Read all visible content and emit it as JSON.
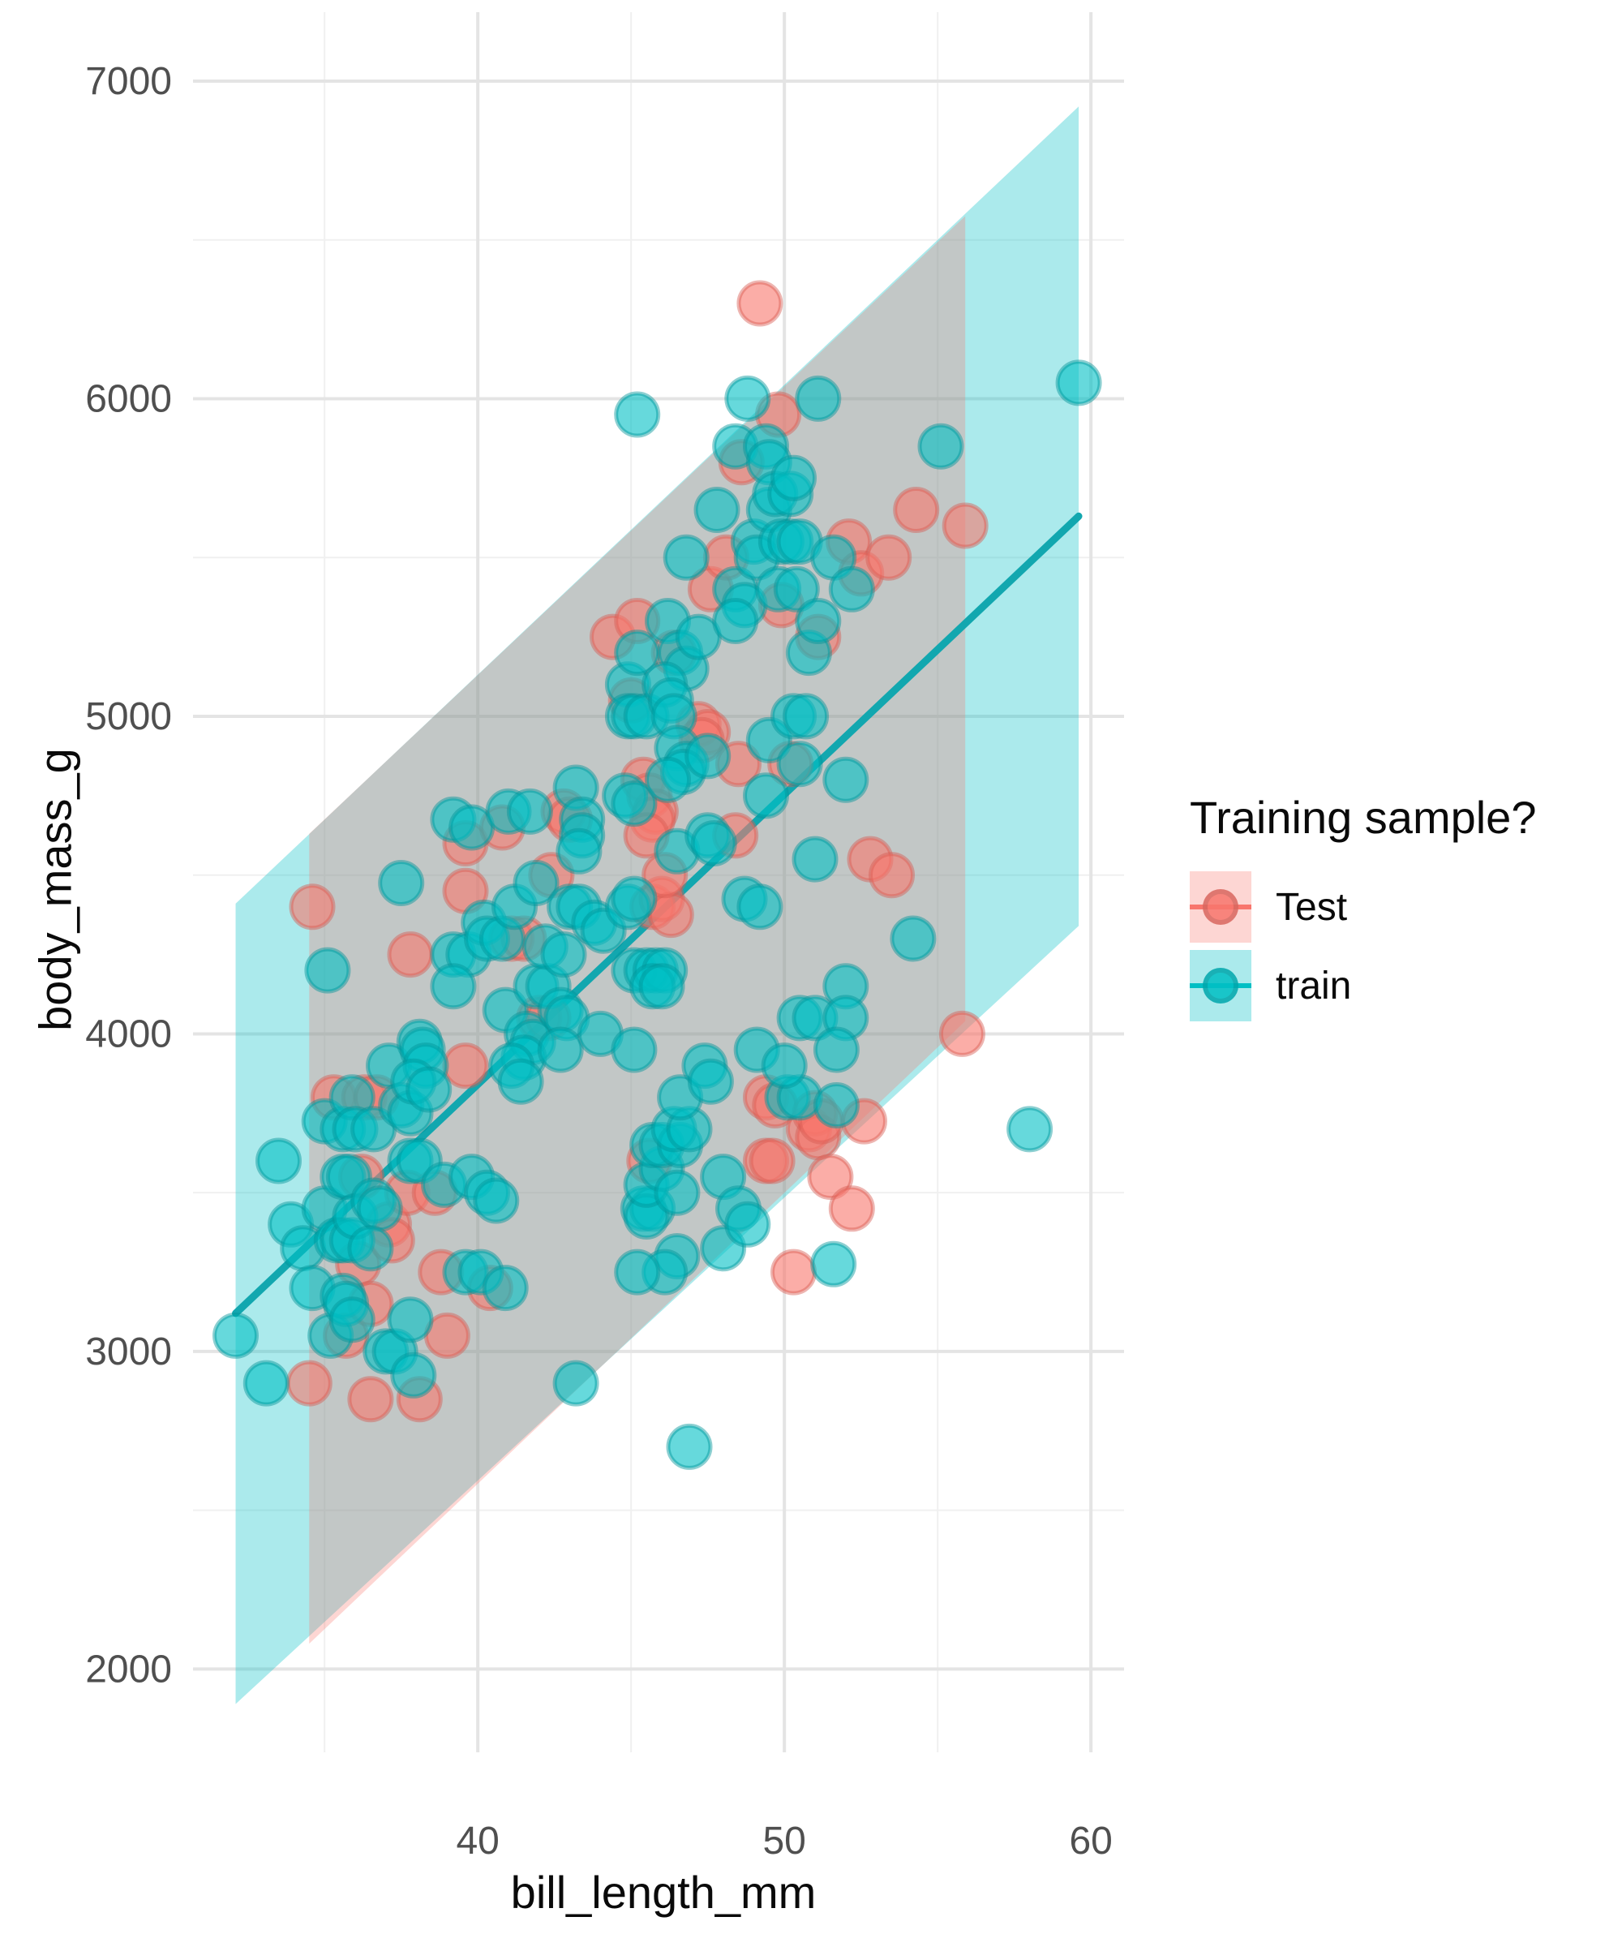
{
  "figure": {
    "xlabel": "bill_length_mm",
    "ylabel": "body_mass_g"
  },
  "legend": {
    "title": "Training sample?",
    "items": [
      {
        "label": "Test",
        "color": "#F8766D",
        "ribbon_rgba": "rgba(248,118,109,0.30)"
      },
      {
        "label": "train",
        "color": "#00BFC4",
        "ribbon_rgba": "rgba(0,191,196,0.33)"
      }
    ]
  },
  "chart_data": {
    "type": "scatter",
    "title": "",
    "xlabel": "bill_length_mm",
    "ylabel": "body_mass_g",
    "xlim": [
      30.71,
      61.08
    ],
    "ylim": [
      1738,
      7217
    ],
    "x_major_ticks": [
      40,
      50,
      60
    ],
    "x_minor_ticks": [
      35,
      45,
      55
    ],
    "y_major_ticks": [
      2000,
      3000,
      4000,
      5000,
      6000,
      7000
    ],
    "y_minor_ticks": [
      2500,
      3500,
      4500,
      5500,
      6500
    ],
    "grid": {
      "major_color": "#e4e4e4",
      "minor_color": "#f0f0f0",
      "major_width": 4,
      "minor_width": 2
    },
    "colors": {
      "Test": "#F8766D",
      "train": "#00BFC4",
      "Test_dark": "#d65b52",
      "train_dark": "#00949a",
      "line": "#12a7af"
    },
    "point_style": {
      "radius": 26,
      "fill_opacity": 0.6,
      "stroke_width": 5,
      "stroke_opacity": 0.45
    },
    "smooth": {
      "line": {
        "series": "train",
        "x": [
          32.1,
          59.6
        ],
        "y": [
          3120,
          5630
        ],
        "width": 9
      },
      "ribbons": [
        {
          "series": "train",
          "fill": "rgba(0,191,196,0.33)",
          "polygon": [
            [
              32.1,
              4410
            ],
            [
              59.6,
              6920
            ],
            [
              59.6,
              4340
            ],
            [
              32.1,
              1890
            ]
          ]
        },
        {
          "series": "Test",
          "fill": "rgba(248,118,109,0.30)",
          "polygon": [
            [
              34.5,
              4630
            ],
            [
              55.9,
              6575
            ],
            [
              55.9,
              4040
            ],
            [
              34.5,
              2080
            ]
          ]
        }
      ]
    },
    "series": [
      {
        "name": "Test",
        "points": [
          [
            34.5,
            2900
          ],
          [
            34.6,
            4400
          ],
          [
            35.3,
            3800
          ],
          [
            35.7,
            3050
          ],
          [
            36.1,
            3275
          ],
          [
            36.2,
            3550
          ],
          [
            36.3,
            3800
          ],
          [
            36.5,
            3150
          ],
          [
            36.5,
            2850
          ],
          [
            36.7,
            3800
          ],
          [
            37.1,
            3400
          ],
          [
            37.2,
            3350
          ],
          [
            37.7,
            3500
          ],
          [
            37.8,
            4250
          ],
          [
            38.1,
            2850
          ],
          [
            38.6,
            3500
          ],
          [
            38.8,
            3250
          ],
          [
            39.0,
            3050
          ],
          [
            39.6,
            4600
          ],
          [
            39.6,
            4450
          ],
          [
            39.6,
            3900
          ],
          [
            40.4,
            3200
          ],
          [
            40.8,
            4650
          ],
          [
            41.1,
            4300
          ],
          [
            41.5,
            4300
          ],
          [
            42.0,
            4050
          ],
          [
            42.3,
            4050
          ],
          [
            42.4,
            4500
          ],
          [
            42.8,
            4700
          ],
          [
            43.0,
            4675
          ],
          [
            44.4,
            5250
          ],
          [
            45.0,
            5050
          ],
          [
            45.2,
            5300
          ],
          [
            45.4,
            4800
          ],
          [
            45.6,
            4750
          ],
          [
            45.8,
            4700
          ],
          [
            45.7,
            4675
          ],
          [
            45.5,
            4625
          ],
          [
            45.6,
            3600
          ],
          [
            45.7,
            4400
          ],
          [
            46.0,
            4425
          ],
          [
            46.3,
            4375
          ],
          [
            46.1,
            4500
          ],
          [
            46.4,
            5200
          ],
          [
            47.2,
            4975
          ],
          [
            47.5,
            4950
          ],
          [
            47.3,
            4925
          ],
          [
            47.6,
            5400
          ],
          [
            48.1,
            5500
          ],
          [
            48.4,
            4625
          ],
          [
            48.5,
            4850
          ],
          [
            48.6,
            5800
          ],
          [
            49.2,
            6300
          ],
          [
            49.4,
            3800
          ],
          [
            49.7,
            3775
          ],
          [
            49.4,
            3600
          ],
          [
            49.6,
            3600
          ],
          [
            49.8,
            5950
          ],
          [
            49.9,
            5350
          ],
          [
            50.2,
            4850
          ],
          [
            50.3,
            3250
          ],
          [
            50.8,
            3700
          ],
          [
            51.0,
            3750
          ],
          [
            51.1,
            3675
          ],
          [
            51.2,
            3725
          ],
          [
            51.1,
            5250
          ],
          [
            51.5,
            3550
          ],
          [
            52.1,
            5550
          ],
          [
            52.2,
            3450
          ],
          [
            52.5,
            5450
          ],
          [
            52.6,
            3725
          ],
          [
            52.8,
            4550
          ],
          [
            53.4,
            5500
          ],
          [
            53.5,
            4500
          ],
          [
            54.3,
            5650
          ],
          [
            55.8,
            4000
          ],
          [
            55.9,
            5600
          ]
        ]
      },
      {
        "name": "train",
        "points": [
          [
            32.1,
            3050
          ],
          [
            33.1,
            2900
          ],
          [
            33.5,
            3600
          ],
          [
            33.9,
            3400
          ],
          [
            34.3,
            3325
          ],
          [
            34.6,
            3200
          ],
          [
            35.0,
            3450
          ],
          [
            35.0,
            3725
          ],
          [
            35.1,
            4200
          ],
          [
            35.2,
            3050
          ],
          [
            35.4,
            3350
          ],
          [
            35.6,
            3350
          ],
          [
            35.9,
            3350
          ],
          [
            35.6,
            3550
          ],
          [
            35.8,
            3550
          ],
          [
            35.6,
            3700
          ],
          [
            35.6,
            3175
          ],
          [
            35.7,
            3150
          ],
          [
            35.9,
            3100
          ],
          [
            35.9,
            3800
          ],
          [
            36.0,
            3425
          ],
          [
            36.0,
            3700
          ],
          [
            36.6,
            3700
          ],
          [
            36.6,
            3475
          ],
          [
            36.8,
            3450
          ],
          [
            36.5,
            3325
          ],
          [
            37.0,
            3000
          ],
          [
            37.3,
            3000
          ],
          [
            37.1,
            3900
          ],
          [
            37.5,
            3775
          ],
          [
            37.8,
            3750
          ],
          [
            37.5,
            4475
          ],
          [
            37.8,
            3100
          ],
          [
            37.9,
            2925
          ],
          [
            37.8,
            3600
          ],
          [
            38.1,
            3600
          ],
          [
            38.1,
            3975
          ],
          [
            38.2,
            3950
          ],
          [
            38.3,
            3900
          ],
          [
            37.9,
            3850
          ],
          [
            38.4,
            3825
          ],
          [
            38.9,
            3525
          ],
          [
            39.2,
            4675
          ],
          [
            39.8,
            4650
          ],
          [
            39.2,
            4250
          ],
          [
            39.7,
            4250
          ],
          [
            39.2,
            4150
          ],
          [
            39.8,
            3550
          ],
          [
            39.6,
            3250
          ],
          [
            40.1,
            3250
          ],
          [
            40.9,
            3200
          ],
          [
            40.2,
            4350
          ],
          [
            40.3,
            4300
          ],
          [
            40.8,
            4300
          ],
          [
            40.9,
            4075
          ],
          [
            40.3,
            3500
          ],
          [
            40.6,
            3475
          ],
          [
            41.0,
            4700
          ],
          [
            41.7,
            4700
          ],
          [
            41.2,
            4400
          ],
          [
            41.9,
            4475
          ],
          [
            41.9,
            4150
          ],
          [
            42.3,
            4150
          ],
          [
            41.6,
            4000
          ],
          [
            41.8,
            3975
          ],
          [
            41.5,
            3925
          ],
          [
            41.1,
            3900
          ],
          [
            41.4,
            3850
          ],
          [
            42.2,
            4275
          ],
          [
            42.8,
            4250
          ],
          [
            42.7,
            4075
          ],
          [
            42.9,
            4050
          ],
          [
            42.7,
            3950
          ],
          [
            43.2,
            4775
          ],
          [
            43.4,
            4675
          ],
          [
            43.4,
            4625
          ],
          [
            43.3,
            4575
          ],
          [
            43.0,
            4400
          ],
          [
            43.3,
            4400
          ],
          [
            43.8,
            4350
          ],
          [
            44.1,
            4325
          ],
          [
            44.0,
            4000
          ],
          [
            43.2,
            2900
          ],
          [
            44.8,
            4750
          ],
          [
            45.1,
            4725
          ],
          [
            44.9,
            5100
          ],
          [
            44.9,
            5000
          ],
          [
            45.1,
            5000
          ],
          [
            45.5,
            5000
          ],
          [
            44.9,
            4400
          ],
          [
            45.1,
            4425
          ],
          [
            45.2,
            5950
          ],
          [
            45.2,
            5200
          ],
          [
            45.1,
            4200
          ],
          [
            45.5,
            4200
          ],
          [
            45.8,
            4200
          ],
          [
            46.1,
            4200
          ],
          [
            45.7,
            4150
          ],
          [
            46.0,
            4150
          ],
          [
            45.1,
            3950
          ],
          [
            45.4,
            3450
          ],
          [
            45.7,
            3450
          ],
          [
            45.5,
            3425
          ],
          [
            45.5,
            3525
          ],
          [
            46.0,
            3575
          ],
          [
            45.7,
            3650
          ],
          [
            46.0,
            3650
          ],
          [
            46.6,
            3650
          ],
          [
            46.4,
            3700
          ],
          [
            46.9,
            3700
          ],
          [
            46.5,
            3500
          ],
          [
            46.2,
            5300
          ],
          [
            46.6,
            5200
          ],
          [
            46.8,
            5150
          ],
          [
            46.1,
            5100
          ],
          [
            46.3,
            5050
          ],
          [
            46.4,
            5000
          ],
          [
            46.5,
            4900
          ],
          [
            46.8,
            4850
          ],
          [
            46.7,
            4825
          ],
          [
            46.2,
            4800
          ],
          [
            46.5,
            4575
          ],
          [
            46.6,
            3800
          ],
          [
            46.5,
            3300
          ],
          [
            46.1,
            3250
          ],
          [
            45.2,
            3250
          ],
          [
            46.9,
            2700
          ],
          [
            47.2,
            5250
          ],
          [
            47.5,
            4875
          ],
          [
            47.5,
            4625
          ],
          [
            47.7,
            4600
          ],
          [
            47.4,
            3900
          ],
          [
            47.6,
            3850
          ],
          [
            48.0,
            3550
          ],
          [
            48.0,
            3325
          ],
          [
            48.5,
            3450
          ],
          [
            48.8,
            3400
          ],
          [
            47.8,
            5650
          ],
          [
            48.4,
            5850
          ],
          [
            48.4,
            5400
          ],
          [
            48.7,
            5350
          ],
          [
            48.4,
            5300
          ],
          [
            48.8,
            6000
          ],
          [
            48.7,
            4425
          ],
          [
            49.2,
            4400
          ],
          [
            49.0,
            5550
          ],
          [
            49.1,
            5500
          ],
          [
            46.8,
            5500
          ],
          [
            49.4,
            5850
          ],
          [
            49.5,
            5800
          ],
          [
            49.5,
            5650
          ],
          [
            49.7,
            5700
          ],
          [
            50.2,
            5700
          ],
          [
            49.9,
            5550
          ],
          [
            50.2,
            5550
          ],
          [
            50.5,
            5550
          ],
          [
            49.8,
            5400
          ],
          [
            50.4,
            5400
          ],
          [
            50.3,
            5750
          ],
          [
            49.4,
            4750
          ],
          [
            49.5,
            4925
          ],
          [
            50.3,
            5000
          ],
          [
            50.7,
            5000
          ],
          [
            50.5,
            4850
          ],
          [
            50.1,
            3800
          ],
          [
            50.5,
            3800
          ],
          [
            49.1,
            3950
          ],
          [
            50.0,
            3900
          ],
          [
            50.5,
            4050
          ],
          [
            51.0,
            4050
          ],
          [
            50.8,
            5200
          ],
          [
            51.1,
            5300
          ],
          [
            51.0,
            4550
          ],
          [
            51.1,
            6000
          ],
          [
            51.6,
            5500
          ],
          [
            52.2,
            5400
          ],
          [
            52.0,
            4800
          ],
          [
            52.0,
            4150
          ],
          [
            52.0,
            4050
          ],
          [
            51.7,
            3950
          ],
          [
            51.7,
            3775
          ],
          [
            51.6,
            3275
          ],
          [
            54.2,
            4300
          ],
          [
            55.1,
            5850
          ],
          [
            58.0,
            3700
          ],
          [
            59.6,
            6050
          ]
        ]
      }
    ],
    "layout_hints": {
      "legend_position": "right-center",
      "panel_background": "white",
      "theme": "minimal"
    }
  },
  "axis_text": {
    "color": "#4f4f4f"
  }
}
